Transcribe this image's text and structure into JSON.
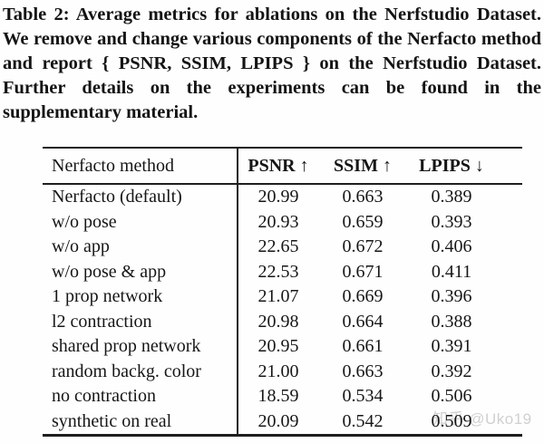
{
  "caption": "Table 2: Average metrics for ablations on the Nerfstudio Dataset. We remove and change various components of the Nerfacto method and report { PSNR, SSIM, LPIPS } on the Nerfstudio Dataset. Further details on the experiments can be found in the supplementary material.",
  "table": {
    "method_header": "Nerfacto method",
    "columns": [
      "PSNR ↑",
      "SSIM ↑",
      "LPIPS ↓"
    ],
    "rows": [
      {
        "method": "Nerfacto (default)",
        "psnr": "20.99",
        "ssim": "0.663",
        "lpips": "0.389"
      },
      {
        "method": "w/o pose",
        "psnr": "20.93",
        "ssim": "0.659",
        "lpips": "0.393"
      },
      {
        "method": "w/o app",
        "psnr": "22.65",
        "ssim": "0.672",
        "lpips": "0.406"
      },
      {
        "method": "w/o pose & app",
        "psnr": "22.53",
        "ssim": "0.671",
        "lpips": "0.411"
      },
      {
        "method": "1 prop network",
        "psnr": "21.07",
        "ssim": "0.669",
        "lpips": "0.396"
      },
      {
        "method": "l2 contraction",
        "psnr": "20.98",
        "ssim": "0.664",
        "lpips": "0.388"
      },
      {
        "method": "shared prop network",
        "psnr": "20.95",
        "ssim": "0.661",
        "lpips": "0.391"
      },
      {
        "method": "random backg. color",
        "psnr": "21.00",
        "ssim": "0.663",
        "lpips": "0.392"
      },
      {
        "method": "no contraction",
        "psnr": "18.59",
        "ssim": "0.534",
        "lpips": "0.506"
      },
      {
        "method": "synthetic on real",
        "psnr": "20.09",
        "ssim": "0.542",
        "lpips": "0.509"
      }
    ]
  },
  "watermark": "知乎 @Uko19",
  "colors": {
    "text": "#141414",
    "rule": "#1e1e1e",
    "watermark": "#d0d0d0",
    "background": "#fefefe"
  }
}
